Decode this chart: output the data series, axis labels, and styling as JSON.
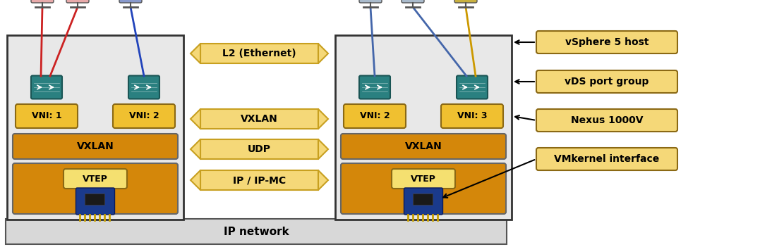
{
  "bg_color": "#ffffff",
  "host_bg": "#e8e8e8",
  "host_border": "#333333",
  "orange_dark": "#D4870A",
  "orange_mid": "#E8A000",
  "light_yellow": "#F5E070",
  "vni_color": "#F0C030",
  "vni_border": "#8B6914",
  "arrow_fill": "#F5D878",
  "arrow_border": "#C8A020",
  "legend_fill": "#F5D878",
  "legend_border": "#8B6914",
  "ip_bg": "#D8D8D8",
  "teal": "#2A8080",
  "teal_dark": "#1A5555",
  "left_vni1": "VNI: 1",
  "left_vni2": "VNI: 2",
  "right_vni1": "VNI: 2",
  "right_vni2": "VNI: 3",
  "vxlan_label": "VXLAN",
  "vtep_label": "VTEP",
  "ip_label": "IP",
  "ip_network": "IP network",
  "arrow_labels": [
    "L2 (Ethernet)",
    "VXLAN",
    "UDP",
    "IP / IP-MC"
  ],
  "legend_labels": [
    "vSphere 5 host",
    "vDS port group",
    "Nexus 1000V",
    "VMkernel interface"
  ]
}
